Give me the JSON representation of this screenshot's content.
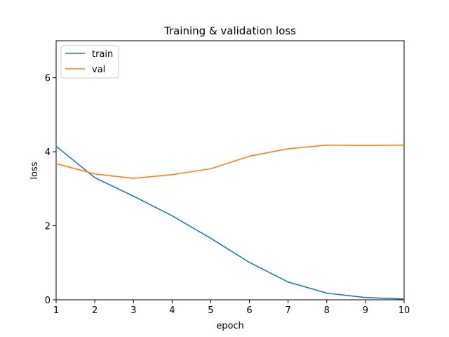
{
  "chart_data": {
    "type": "line",
    "title": "Training & validation loss",
    "xlabel": "epoch",
    "ylabel": "loss",
    "xlim": [
      1,
      10
    ],
    "ylim": [
      0,
      7
    ],
    "xticks": [
      1,
      2,
      3,
      4,
      5,
      6,
      7,
      8,
      9,
      10
    ],
    "yticks": [
      0,
      2,
      4,
      6
    ],
    "grid": false,
    "legend_position": "top-left",
    "x": [
      1,
      2,
      3,
      4,
      5,
      6,
      7,
      8,
      9,
      10
    ],
    "series": [
      {
        "name": "train",
        "color": "#1f77b4",
        "values": [
          4.15,
          3.3,
          2.8,
          2.27,
          1.66,
          1.01,
          0.48,
          0.18,
          0.06,
          0.02
        ]
      },
      {
        "name": "val",
        "color": "#ff7f0e",
        "values": [
          3.68,
          3.4,
          3.28,
          3.38,
          3.54,
          3.88,
          4.08,
          4.18,
          4.17,
          4.18
        ]
      }
    ]
  }
}
